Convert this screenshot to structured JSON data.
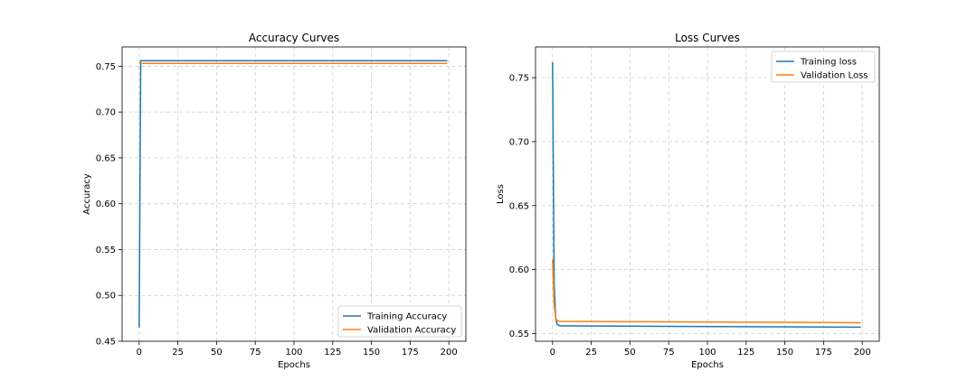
{
  "chart_data": [
    {
      "type": "line",
      "title": "Accuracy Curves",
      "xlabel": "Epochs",
      "ylabel": "Accuracy",
      "xlim": [
        -11,
        211
      ],
      "ylim": [
        0.45,
        0.771
      ],
      "xticks": [
        0,
        25,
        50,
        75,
        100,
        125,
        150,
        175,
        200
      ],
      "yticks": [
        0.45,
        0.5,
        0.55,
        0.6,
        0.65,
        0.7,
        0.75
      ],
      "ytick_labels": [
        "0.45",
        "0.50",
        "0.55",
        "0.60",
        "0.65",
        "0.70",
        "0.75"
      ],
      "grid": true,
      "legend_position": "lower-right",
      "series": [
        {
          "name": "Training Accuracy",
          "color": "#1f77b4",
          "x": [
            0,
            1,
            2,
            199
          ],
          "y": [
            0.465,
            0.756,
            0.756,
            0.756
          ]
        },
        {
          "name": "Validation Accuracy",
          "color": "#ff7f0e",
          "x": [
            0,
            1,
            199
          ],
          "y": [
            0.753,
            0.753,
            0.753
          ]
        }
      ]
    },
    {
      "type": "line",
      "title": "Loss Curves",
      "xlabel": "Epochs",
      "ylabel": "Loss",
      "xlim": [
        -11,
        211
      ],
      "ylim": [
        0.544,
        0.774
      ],
      "xticks": [
        0,
        25,
        50,
        75,
        100,
        125,
        150,
        175,
        200
      ],
      "yticks": [
        0.55,
        0.6,
        0.65,
        0.7,
        0.75
      ],
      "ytick_labels": [
        "0.55",
        "0.60",
        "0.65",
        "0.70",
        "0.75"
      ],
      "grid": true,
      "legend_position": "upper-right",
      "series": [
        {
          "name": "Training loss",
          "color": "#1f77b4",
          "x": [
            0,
            1,
            2,
            3,
            5,
            10,
            199
          ],
          "y": [
            0.762,
            0.59,
            0.562,
            0.557,
            0.556,
            0.556,
            0.555
          ]
        },
        {
          "name": "Validation Loss",
          "color": "#ff7f0e",
          "x": [
            0,
            1,
            2,
            3,
            5,
            199
          ],
          "y": [
            0.608,
            0.573,
            0.562,
            0.56,
            0.5595,
            0.5585
          ]
        }
      ]
    }
  ]
}
